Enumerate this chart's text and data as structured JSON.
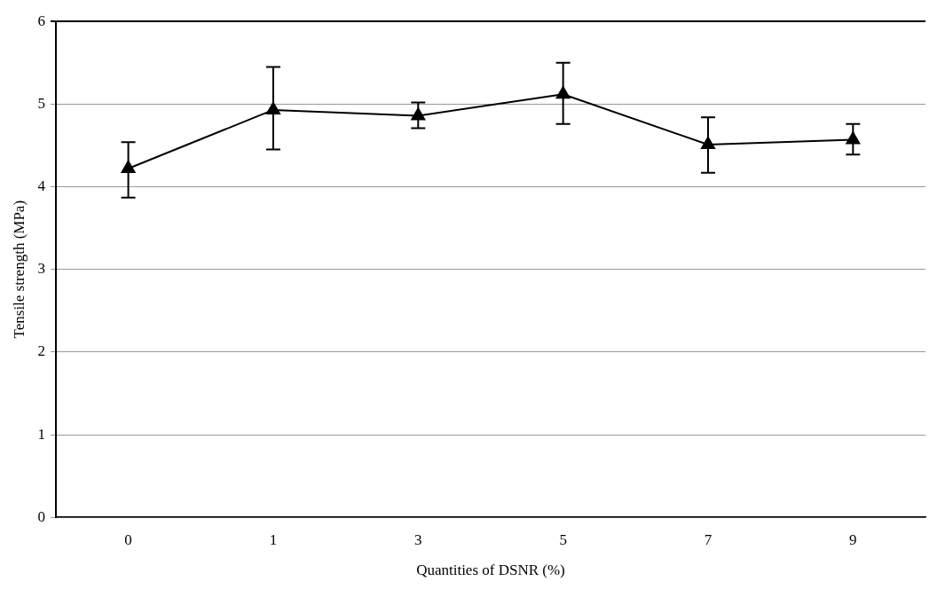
{
  "chart_data": {
    "type": "line",
    "xlabel": "Quantities of DSNR (%)",
    "ylabel": "Tensile strength (MPa)",
    "categories": [
      "0",
      "1",
      "3",
      "5",
      "7",
      "9"
    ],
    "series": [
      {
        "color": "#000000",
        "values": [
          4.22,
          4.93,
          4.86,
          5.12,
          4.51,
          4.57
        ],
        "errors": [
          [
            3.87,
            4.54
          ],
          [
            4.45,
            5.45
          ],
          [
            4.71,
            5.02
          ],
          [
            4.76,
            5.5
          ],
          [
            4.17,
            4.84
          ],
          [
            4.39,
            4.76
          ]
        ]
      }
    ],
    "ylim": [
      0,
      6
    ],
    "yticks": [
      0,
      1,
      2,
      3,
      4,
      5,
      6
    ],
    "grid": "y",
    "legend": false,
    "marker": "triangle",
    "line_style": "solid"
  }
}
